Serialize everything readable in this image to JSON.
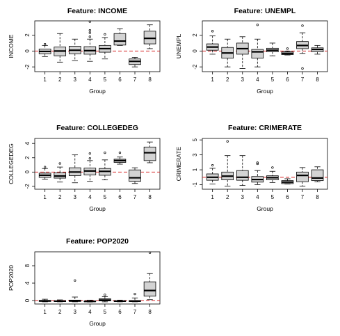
{
  "chart_data": [
    {
      "type": "boxplot",
      "title": "Feature: INCOME",
      "xlabel": "Group",
      "ylabel": "INCOME",
      "categories": [
        "1",
        "2",
        "3",
        "4",
        "5",
        "6",
        "7",
        "8"
      ],
      "yticks": [
        -2,
        0,
        2
      ],
      "ylim": [
        -2.6,
        3.8
      ],
      "reference_line": 0,
      "boxes": [
        {
          "low": -0.7,
          "q1": -0.35,
          "median": -0.05,
          "q3": 0.25,
          "high": 0.7,
          "outliers": [
            0.85
          ]
        },
        {
          "low": -1.4,
          "q1": -0.6,
          "median": 0.0,
          "q3": 0.5,
          "high": 2.2,
          "outliers": []
        },
        {
          "low": -1.2,
          "q1": -0.35,
          "median": 0.1,
          "q3": 0.6,
          "high": 1.5,
          "outliers": []
        },
        {
          "low": -1.3,
          "q1": -0.4,
          "median": 0.05,
          "q3": 0.55,
          "high": 1.5,
          "outliers": [
            1.8,
            2.3,
            2.6,
            3.7
          ]
        },
        {
          "low": -1.0,
          "q1": -0.15,
          "median": 0.3,
          "q3": 0.7,
          "high": 1.7,
          "outliers": [
            2.1
          ]
        },
        {
          "low": 0.7,
          "q1": 0.75,
          "median": 1.25,
          "q3": 2.2,
          "high": 2.8,
          "outliers": []
        },
        {
          "low": -2.0,
          "q1": -1.7,
          "median": -1.3,
          "q3": -1.0,
          "high": -0.8,
          "outliers": []
        },
        {
          "low": 0.3,
          "q1": 0.9,
          "median": 1.6,
          "q3": 2.5,
          "high": 3.3,
          "outliers": []
        }
      ]
    },
    {
      "type": "boxplot",
      "title": "Feature: UNEMPL",
      "xlabel": "Group",
      "ylabel": "UNEMPL",
      "categories": [
        "1",
        "2",
        "3",
        "4",
        "5",
        "6",
        "7",
        "8"
      ],
      "yticks": [
        -2,
        0,
        2
      ],
      "ylim": [
        -2.6,
        3.8
      ],
      "reference_line": 0,
      "boxes": [
        {
          "low": -0.4,
          "q1": 0.1,
          "median": 0.5,
          "q3": 0.9,
          "high": 1.9,
          "outliers": [
            2.5
          ]
        },
        {
          "low": -2.0,
          "q1": -0.9,
          "median": -0.25,
          "q3": 0.45,
          "high": 1.5,
          "outliers": []
        },
        {
          "low": -2.2,
          "q1": -0.4,
          "median": 0.3,
          "q3": 1.0,
          "high": 1.8,
          "outliers": []
        },
        {
          "low": -2.0,
          "q1": -0.9,
          "median": -0.1,
          "q3": 0.2,
          "high": 1.5,
          "outliers": [
            3.3
          ]
        },
        {
          "low": -0.6,
          "q1": -0.1,
          "median": 0.1,
          "q3": 0.35,
          "high": 1.0,
          "outliers": []
        },
        {
          "low": -0.5,
          "q1": -0.45,
          "median": -0.3,
          "q3": -0.1,
          "high": 0.0,
          "outliers": [
            0.3
          ]
        },
        {
          "low": -0.3,
          "q1": 0.3,
          "median": 0.7,
          "q3": 1.2,
          "high": 2.3,
          "outliers": [
            3.2,
            -2.2
          ]
        },
        {
          "low": -0.4,
          "q1": -0.1,
          "median": 0.2,
          "q3": 0.4,
          "high": 0.7,
          "outliers": []
        }
      ]
    },
    {
      "type": "boxplot",
      "title": "Feature: COLLEGEDEG",
      "xlabel": "Group",
      "ylabel": "COLLEGEDEG",
      "categories": [
        "1",
        "2",
        "3",
        "4",
        "5",
        "6",
        "7",
        "8"
      ],
      "yticks": [
        -2,
        0,
        2,
        4
      ],
      "ylim": [
        -2.4,
        4.7
      ],
      "reference_line": 0,
      "boxes": [
        {
          "low": -1.0,
          "q1": -0.75,
          "median": -0.45,
          "q3": -0.15,
          "high": 0.5,
          "outliers": [
            0.7
          ]
        },
        {
          "low": -1.4,
          "q1": -0.85,
          "median": -0.55,
          "q3": -0.1,
          "high": 0.7,
          "outliers": [
            1.2
          ]
        },
        {
          "low": -1.5,
          "q1": -0.5,
          "median": 0.0,
          "q3": 0.6,
          "high": 2.4,
          "outliers": []
        },
        {
          "low": -1.3,
          "q1": -0.4,
          "median": 0.15,
          "q3": 0.55,
          "high": 1.6,
          "outliers": [
            1.9,
            2.6
          ]
        },
        {
          "low": -1.1,
          "q1": -0.45,
          "median": 0.1,
          "q3": 0.5,
          "high": 1.7,
          "outliers": [
            2.7
          ]
        },
        {
          "low": 1.1,
          "q1": 1.35,
          "median": 1.6,
          "q3": 1.8,
          "high": 2.1,
          "outliers": [
            2.7
          ]
        },
        {
          "low": -1.6,
          "q1": -1.3,
          "median": -0.8,
          "q3": 0.3,
          "high": 0.6,
          "outliers": []
        },
        {
          "low": 1.3,
          "q1": 1.6,
          "median": 2.7,
          "q3": 3.5,
          "high": 4.2,
          "outliers": []
        }
      ]
    },
    {
      "type": "boxplot",
      "title": "Feature: CRIMERATE",
      "xlabel": "Group",
      "ylabel": "CRIMERATE",
      "categories": [
        "1",
        "2",
        "3",
        "4",
        "5",
        "6",
        "7",
        "8"
      ],
      "yticks": [
        -1,
        1,
        3,
        5
      ],
      "ylim": [
        -1.6,
        5.2
      ],
      "reference_line": 0,
      "boxes": [
        {
          "low": -0.9,
          "q1": -0.4,
          "median": 0.0,
          "q3": 0.45,
          "high": 1.2,
          "outliers": [
            1.6
          ]
        },
        {
          "low": -1.2,
          "q1": -0.35,
          "median": 0.15,
          "q3": 0.7,
          "high": 2.9,
          "outliers": [
            4.8
          ]
        },
        {
          "low": -1.1,
          "q1": -0.4,
          "median": 0.0,
          "q3": 0.9,
          "high": 2.9,
          "outliers": []
        },
        {
          "low": -1.0,
          "q1": -0.65,
          "median": -0.3,
          "q3": 0.1,
          "high": 0.9,
          "outliers": [
            1.8,
            1.95
          ]
        },
        {
          "low": -0.7,
          "q1": -0.35,
          "median": -0.05,
          "q3": 0.2,
          "high": 0.8,
          "outliers": [
            1.3
          ]
        },
        {
          "low": -0.9,
          "q1": -0.85,
          "median": -0.65,
          "q3": -0.45,
          "high": -0.2,
          "outliers": []
        },
        {
          "low": -1.2,
          "q1": -0.6,
          "median": 0.25,
          "q3": 0.7,
          "high": 1.3,
          "outliers": []
        },
        {
          "low": -0.6,
          "q1": -0.45,
          "median": -0.1,
          "q3": 1.0,
          "high": 1.4,
          "outliers": []
        }
      ]
    },
    {
      "type": "boxplot",
      "title": "Feature: POP2020",
      "xlabel": "Group",
      "ylabel": "POP2020",
      "categories": [
        "1",
        "2",
        "3",
        "4",
        "5",
        "6",
        "7",
        "8"
      ],
      "yticks": [
        0,
        4,
        8
      ],
      "ylim": [
        -0.8,
        11.2
      ],
      "reference_line": 0,
      "boxes": [
        {
          "low": -0.3,
          "q1": -0.2,
          "median": -0.1,
          "q3": 0.05,
          "high": 0.3,
          "outliers": []
        },
        {
          "low": -0.3,
          "q1": -0.25,
          "median": -0.15,
          "q3": -0.05,
          "high": 0.15,
          "outliers": []
        },
        {
          "low": -0.3,
          "q1": -0.2,
          "median": -0.1,
          "q3": 0.1,
          "high": 0.8,
          "outliers": [
            4.6
          ]
        },
        {
          "low": -0.35,
          "q1": -0.25,
          "median": -0.2,
          "q3": -0.1,
          "high": 0.1,
          "outliers": []
        },
        {
          "low": -0.3,
          "q1": -0.1,
          "median": 0.1,
          "q3": 0.4,
          "high": 0.9,
          "outliers": [
            1.3
          ]
        },
        {
          "low": -0.3,
          "q1": -0.2,
          "median": -0.15,
          "q3": -0.05,
          "high": 0.1,
          "outliers": []
        },
        {
          "low": -0.3,
          "q1": -0.2,
          "median": -0.15,
          "q3": 0.0,
          "high": 0.6,
          "outliers": [
            1.5
          ]
        },
        {
          "low": 0.2,
          "q1": 1.0,
          "median": 2.3,
          "q3": 4.3,
          "high": 6.2,
          "outliers": [
            11.0
          ]
        }
      ]
    }
  ],
  "colors": {
    "box_fill": "#d3d3d3",
    "line": "#000000",
    "reference_line": "#d62728"
  }
}
